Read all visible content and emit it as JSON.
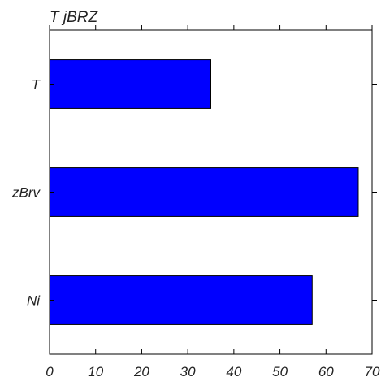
{
  "chart_data": {
    "type": "bar",
    "orientation": "horizontal",
    "title": "T jBRZ",
    "xlabel": "",
    "ylabel": "",
    "categories": [
      "T",
      "zBrv",
      "Ni"
    ],
    "values": [
      35,
      67,
      57
    ],
    "xlim": [
      0,
      70
    ],
    "xticks": [
      0,
      10,
      20,
      30,
      40,
      50,
      60,
      70
    ],
    "grid": false,
    "legend": "none",
    "bar_color": "#0000ff"
  }
}
